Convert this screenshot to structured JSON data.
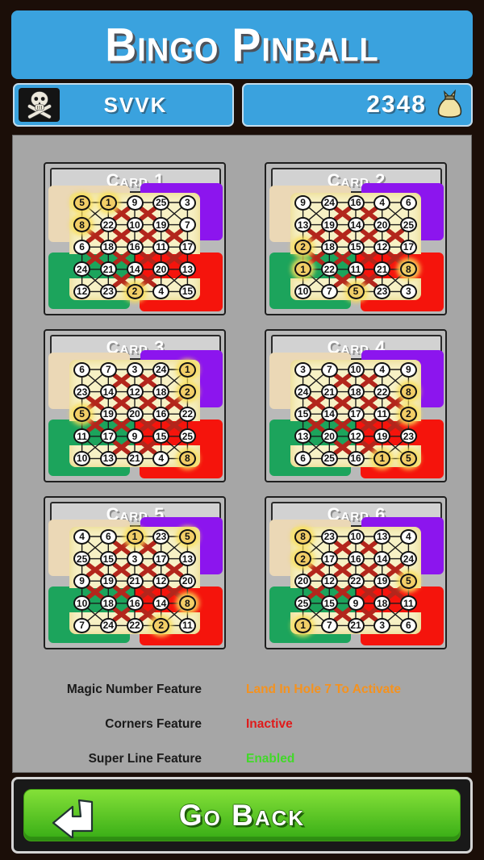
{
  "header": {
    "title": "Bingo Pinball"
  },
  "player": {
    "name": "SVVK",
    "score": "2348",
    "avatar_icon": "skull-and-crossbones-icon",
    "score_icon": "money-bag-icon"
  },
  "x_pattern": [
    [
      0,
      1,
      1,
      0
    ],
    [
      1,
      1,
      1,
      1
    ],
    [
      1,
      1,
      1,
      1
    ],
    [
      0,
      1,
      1,
      0
    ]
  ],
  "cards": [
    {
      "title": "Card 1",
      "numbers": [
        [
          5,
          1,
          9,
          25,
          3
        ],
        [
          8,
          22,
          10,
          19,
          7
        ],
        [
          6,
          18,
          16,
          11,
          17
        ],
        [
          24,
          21,
          14,
          20,
          13
        ],
        [
          12,
          23,
          2,
          4,
          15
        ]
      ],
      "gold": [
        [
          0,
          0
        ],
        [
          0,
          1
        ],
        [
          1,
          0
        ],
        [
          4,
          2
        ]
      ]
    },
    {
      "title": "Card 2",
      "numbers": [
        [
          9,
          24,
          16,
          4,
          6
        ],
        [
          13,
          19,
          14,
          20,
          25
        ],
        [
          2,
          18,
          15,
          12,
          17
        ],
        [
          1,
          22,
          11,
          21,
          8
        ],
        [
          10,
          7,
          5,
          23,
          3
        ]
      ],
      "gold": [
        [
          2,
          0
        ],
        [
          3,
          0
        ],
        [
          3,
          4
        ],
        [
          4,
          2
        ]
      ]
    },
    {
      "title": "Card 3",
      "numbers": [
        [
          6,
          7,
          3,
          24,
          1
        ],
        [
          23,
          14,
          12,
          18,
          2
        ],
        [
          5,
          19,
          20,
          16,
          22
        ],
        [
          11,
          17,
          9,
          15,
          25
        ],
        [
          10,
          13,
          21,
          4,
          8
        ]
      ],
      "gold": [
        [
          0,
          4
        ],
        [
          1,
          4
        ],
        [
          2,
          0
        ],
        [
          4,
          4
        ]
      ]
    },
    {
      "title": "Card 4",
      "numbers": [
        [
          3,
          7,
          10,
          4,
          9
        ],
        [
          24,
          21,
          18,
          22,
          8
        ],
        [
          15,
          14,
          17,
          11,
          2
        ],
        [
          13,
          20,
          12,
          19,
          23
        ],
        [
          6,
          25,
          16,
          1,
          5
        ]
      ],
      "gold": [
        [
          1,
          4
        ],
        [
          2,
          4
        ],
        [
          4,
          3
        ],
        [
          4,
          4
        ]
      ]
    },
    {
      "title": "Card 5",
      "numbers": [
        [
          4,
          6,
          1,
          23,
          5
        ],
        [
          25,
          15,
          3,
          17,
          13
        ],
        [
          9,
          19,
          21,
          12,
          20
        ],
        [
          10,
          18,
          16,
          14,
          8
        ],
        [
          7,
          24,
          22,
          2,
          11
        ]
      ],
      "gold": [
        [
          0,
          2
        ],
        [
          0,
          4
        ],
        [
          3,
          4
        ],
        [
          4,
          3
        ]
      ]
    },
    {
      "title": "Card 6",
      "numbers": [
        [
          8,
          23,
          10,
          13,
          4
        ],
        [
          2,
          17,
          16,
          14,
          24
        ],
        [
          20,
          12,
          22,
          19,
          5
        ],
        [
          25,
          15,
          9,
          18,
          11
        ],
        [
          1,
          7,
          21,
          3,
          6
        ]
      ],
      "gold": [
        [
          0,
          0
        ],
        [
          1,
          0
        ],
        [
          2,
          4
        ],
        [
          4,
          0
        ]
      ]
    }
  ],
  "features": [
    {
      "label": "Magic Number Feature",
      "value": "Land In Hole 7 To Activate",
      "color": "#f5921e"
    },
    {
      "label": "Corners Feature",
      "value": "Inactive",
      "color": "#e01a1a"
    },
    {
      "label": "Super Line Feature",
      "value": "Enabled",
      "color": "#42d929"
    }
  ],
  "back_button": {
    "label": "Go Back",
    "icon": "return-arrow-icon"
  },
  "colors": {
    "title_panel_blue": "#3aa2de",
    "main_panel_gray": "#a6a6a6",
    "card_gray": "#b9b9b9",
    "corner_tan": "#ebd8b6",
    "corner_purple": "#8c15ee",
    "corner_green": "#1ca45c",
    "corner_red": "#f5140c",
    "grid_panel_yellow": "#f7f1c5",
    "gold_circle": "#f2ce67",
    "x_mark_red": "#b3261c",
    "button_green": "#36ac15"
  }
}
